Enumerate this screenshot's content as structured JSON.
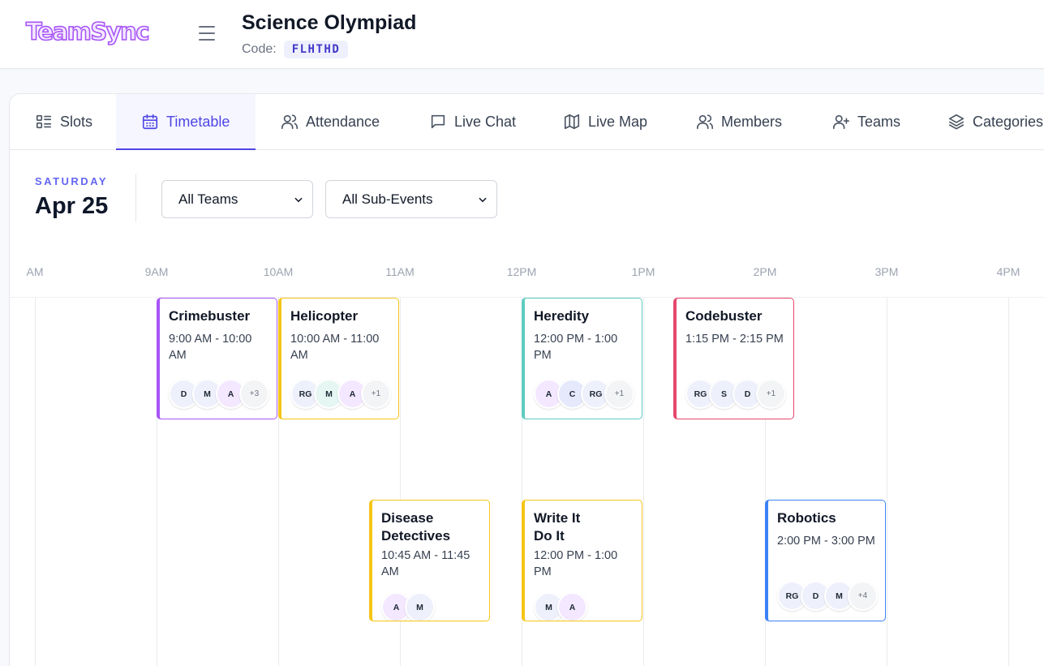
{
  "app": {
    "logo": "TeamSync"
  },
  "header": {
    "title": "Science Olympiad",
    "code_label": "Code:",
    "code": "FLHTHD"
  },
  "tabs": [
    {
      "label": "Slots",
      "icon": "list-icon",
      "active": false
    },
    {
      "label": "Timetable",
      "icon": "calendar-icon",
      "active": true
    },
    {
      "label": "Attendance",
      "icon": "users-icon",
      "active": false
    },
    {
      "label": "Live Chat",
      "icon": "chat-icon",
      "active": false
    },
    {
      "label": "Live Map",
      "icon": "map-icon",
      "active": false
    },
    {
      "label": "Members",
      "icon": "users-icon",
      "active": false
    },
    {
      "label": "Teams",
      "icon": "user-plus-icon",
      "active": false
    },
    {
      "label": "Categories",
      "icon": "layers-icon",
      "active": false
    }
  ],
  "day": {
    "weekday": "SATURDAY",
    "date": "Apr 25"
  },
  "filters": {
    "team": "All Teams",
    "sub_event": "All Sub-Events"
  },
  "timeline": {
    "hours": [
      "AM",
      "9AM",
      "10AM",
      "11AM",
      "12PM",
      "1PM",
      "2PM",
      "3PM",
      "4PM"
    ]
  },
  "events": [
    {
      "title": "Crimebuster",
      "time": "9:00 AM - 10:00 AM",
      "color": "#a855f7",
      "avatars": [
        {
          "t": "D",
          "c": "#eef0fb"
        },
        {
          "t": "M",
          "c": "#eef0fb"
        },
        {
          "t": "A",
          "c": "#f3e8ff"
        }
      ],
      "more": "+3"
    },
    {
      "title": "Helicopter",
      "time": "10:00 AM - 11:00 AM",
      "color": "#f5c518",
      "avatars": [
        {
          "t": "RG",
          "c": "#eef0fb"
        },
        {
          "t": "M",
          "c": "#e6f7f3"
        },
        {
          "t": "A",
          "c": "#f3e8ff"
        }
      ],
      "more": "+1"
    },
    {
      "title": "Heredity",
      "time": "12:00 PM - 1:00 PM",
      "color": "#5eccc0",
      "avatars": [
        {
          "t": "A",
          "c": "#f3e8ff"
        },
        {
          "t": "C",
          "c": "#e5e9fb"
        },
        {
          "t": "RG",
          "c": "#eef0fb"
        }
      ],
      "more": "+1"
    },
    {
      "title": "Codebuster",
      "time": "1:15 PM - 2:15 PM",
      "color": "#e5486e",
      "avatars": [
        {
          "t": "RG",
          "c": "#eef0fb"
        },
        {
          "t": "S",
          "c": "#eef0fb"
        },
        {
          "t": "D",
          "c": "#eef0fb"
        }
      ],
      "more": "+1"
    },
    {
      "title": "Disease Detectives",
      "time": "10:45 AM - 11:45 AM",
      "color": "#f5c518",
      "avatars": [
        {
          "t": "A",
          "c": "#f3e8ff"
        },
        {
          "t": "M",
          "c": "#eef0fb"
        }
      ],
      "more": ""
    },
    {
      "title": "Write It Do It",
      "time": "12:00 PM - 1:00 PM",
      "color": "#f5c518",
      "avatars": [
        {
          "t": "M",
          "c": "#eef0fb"
        },
        {
          "t": "A",
          "c": "#f3e8ff"
        }
      ],
      "more": ""
    },
    {
      "title": "Robotics",
      "time": "2:00 PM - 3:00 PM",
      "color": "#3b82f6",
      "avatars": [
        {
          "t": "RG",
          "c": "#eef0fb"
        },
        {
          "t": "D",
          "c": "#eef0fb"
        },
        {
          "t": "M",
          "c": "#eef0fb"
        }
      ],
      "more": "+4"
    }
  ]
}
